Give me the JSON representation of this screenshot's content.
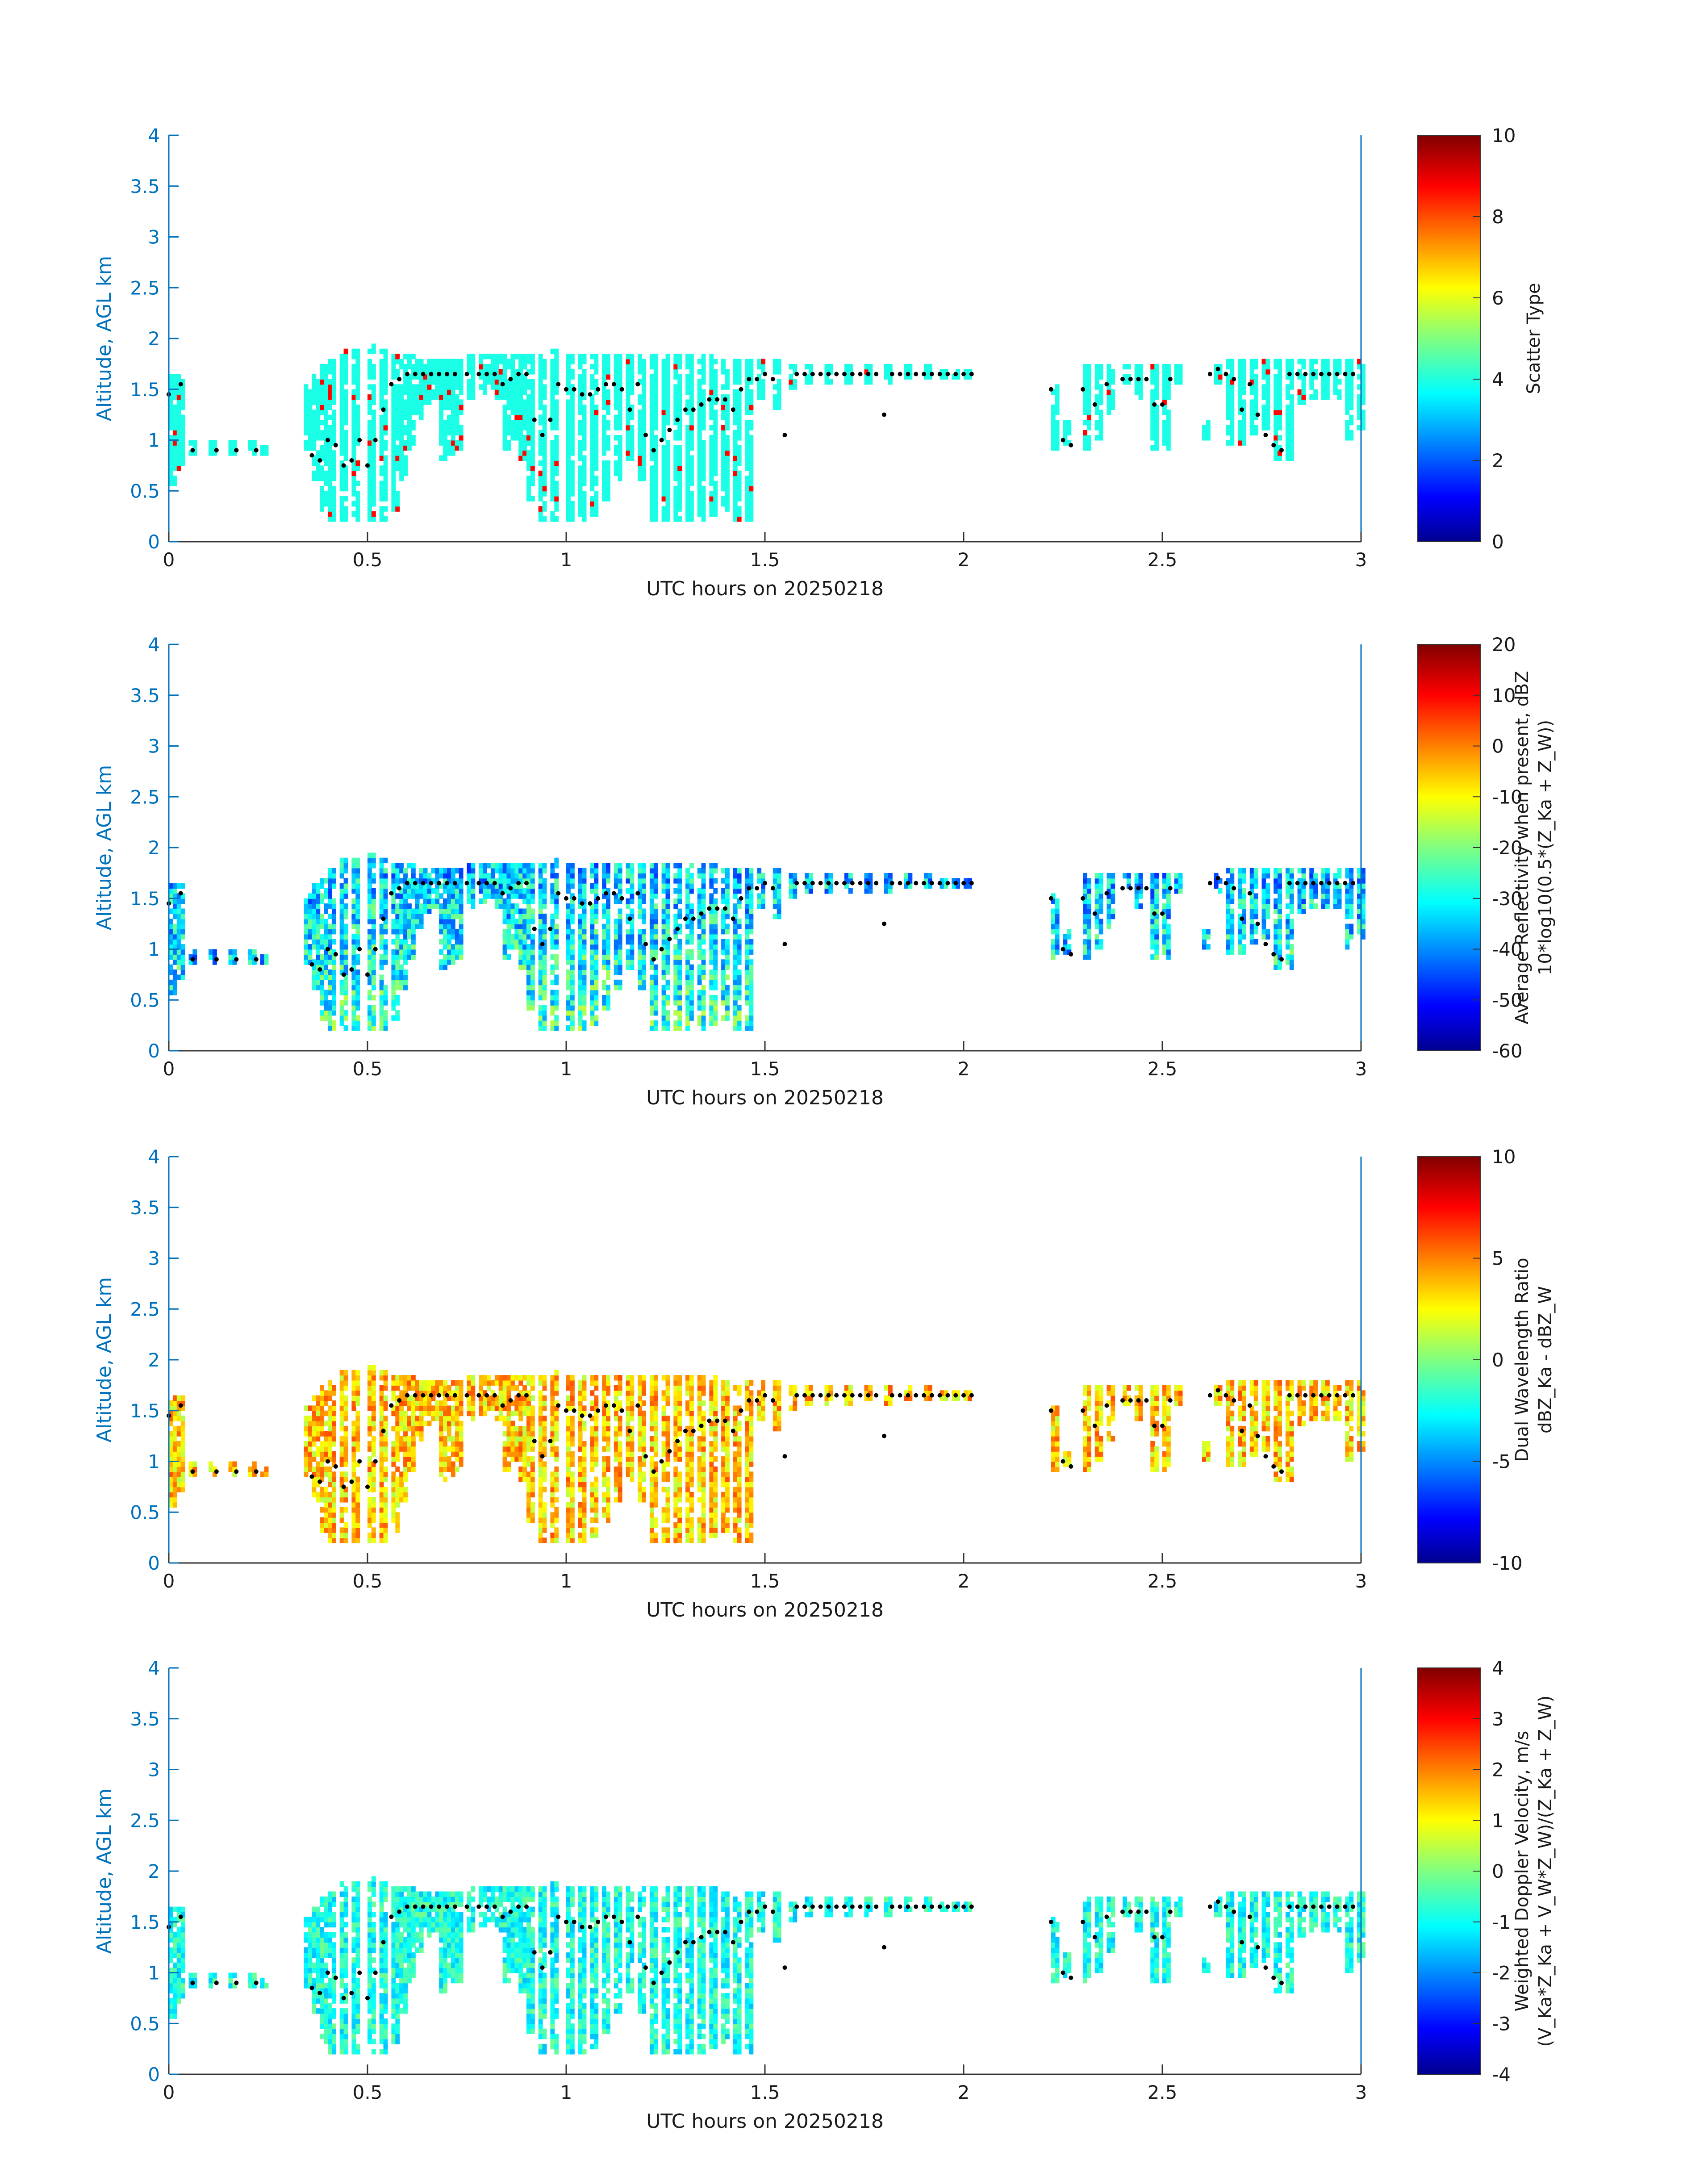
{
  "xlabel": "UTC hours on 20250218",
  "ylabel": "Altitude, AGL km",
  "colormap": "jet",
  "chart_data": [
    {
      "type": "heatmap",
      "xlim": [
        0,
        3
      ],
      "ylim": [
        0,
        4
      ],
      "xticks": [
        "0",
        "0.5",
        "1",
        "1.5",
        "2",
        "2.5",
        "3"
      ],
      "yticks": [
        "0",
        "0.5",
        "1",
        "1.5",
        "2",
        "2.5",
        "3",
        "3.5",
        "4"
      ],
      "colorbar": {
        "min": 0,
        "max": 10,
        "ticks": [
          "0",
          "2",
          "4",
          "6",
          "8",
          "10"
        ],
        "label": [
          "Scatter Type"
        ]
      },
      "typical_value": 4,
      "variability": 0.0,
      "outlier_value": 8.7,
      "outlier_rate": 0.03
    },
    {
      "type": "heatmap",
      "xlim": [
        0,
        3
      ],
      "ylim": [
        0,
        4
      ],
      "xticks": [
        "0",
        "0.5",
        "1",
        "1.5",
        "2",
        "2.5",
        "3"
      ],
      "yticks": [
        "0",
        "0.5",
        "1",
        "1.5",
        "2",
        "2.5",
        "3",
        "3.5",
        "4"
      ],
      "colorbar": {
        "min": -60,
        "max": 20,
        "ticks": [
          "-60",
          "-50",
          "-40",
          "-30",
          "-20",
          "-10",
          "0",
          "10",
          "20"
        ],
        "label": [
          "Average Reflectivity when present, dBZ",
          "10*log10(0.5*(Z_Ka + Z_W))"
        ]
      },
      "typical_value": -35,
      "variability": 12
    },
    {
      "type": "heatmap",
      "xlim": [
        0,
        3
      ],
      "ylim": [
        0,
        4
      ],
      "xticks": [
        "0",
        "0.5",
        "1",
        "1.5",
        "2",
        "2.5",
        "3"
      ],
      "yticks": [
        "0",
        "0.5",
        "1",
        "1.5",
        "2",
        "2.5",
        "3",
        "3.5",
        "4"
      ],
      "colorbar": {
        "min": -10,
        "max": 10,
        "ticks": [
          "-10",
          "-5",
          "0",
          "5",
          "10"
        ],
        "label": [
          "Dual Wavelength Ratio",
          "dBZ_Ka - dBZ_W"
        ]
      },
      "typical_value": 3.5,
      "variability": 2.5
    },
    {
      "type": "heatmap",
      "xlim": [
        0,
        3
      ],
      "ylim": [
        0,
        4
      ],
      "xticks": [
        "0",
        "0.5",
        "1",
        "1.5",
        "2",
        "2.5",
        "3"
      ],
      "yticks": [
        "0",
        "0.5",
        "1",
        "1.5",
        "2",
        "2.5",
        "3",
        "3.5",
        "4"
      ],
      "colorbar": {
        "min": -4,
        "max": 4,
        "ticks": [
          "-4",
          "-3",
          "-2",
          "-1",
          "0",
          "1",
          "2",
          "3",
          "4"
        ],
        "label": [
          "Weighted Doppler Velocity, m/s",
          "(V_Ka*Z_Ka + V_W*Z_W)/(Z_Ka + Z_W)"
        ]
      },
      "typical_value": -0.8,
      "variability": 0.7
    }
  ],
  "cloud_mask": {
    "dx": 0.01,
    "dz": 0.05,
    "columns": [
      [
        0.0,
        0.55,
        1.65
      ],
      [
        0.02,
        0.7,
        1.65
      ],
      [
        0.05,
        0.85,
        1.0
      ],
      [
        0.1,
        0.85,
        1.0
      ],
      [
        0.15,
        0.85,
        1.0
      ],
      [
        0.2,
        0.85,
        1.0
      ],
      [
        0.23,
        0.85,
        0.95
      ],
      [
        0.34,
        0.85,
        1.55
      ],
      [
        0.36,
        0.6,
        1.65
      ],
      [
        0.38,
        0.3,
        1.75
      ],
      [
        0.4,
        0.2,
        1.8
      ],
      [
        0.43,
        0.2,
        1.9
      ],
      [
        0.46,
        0.2,
        1.9
      ],
      [
        0.5,
        0.2,
        1.95
      ],
      [
        0.53,
        0.2,
        1.9
      ],
      [
        0.56,
        0.3,
        1.85
      ],
      [
        0.58,
        0.6,
        1.85
      ],
      [
        0.6,
        0.9,
        1.85
      ],
      [
        0.62,
        1.2,
        1.8
      ],
      [
        0.64,
        1.35,
        1.8
      ],
      [
        0.66,
        1.4,
        1.8
      ],
      [
        0.68,
        0.8,
        1.8
      ],
      [
        0.7,
        0.85,
        1.8
      ],
      [
        0.72,
        0.9,
        1.8
      ],
      [
        0.75,
        1.4,
        1.85
      ],
      [
        0.78,
        1.45,
        1.85
      ],
      [
        0.8,
        1.5,
        1.85
      ],
      [
        0.82,
        1.4,
        1.85
      ],
      [
        0.84,
        0.9,
        1.85
      ],
      [
        0.86,
        1.0,
        1.85
      ],
      [
        0.88,
        0.8,
        1.85
      ],
      [
        0.9,
        0.4,
        1.85
      ],
      [
        0.93,
        0.2,
        1.85
      ],
      [
        0.96,
        0.2,
        1.9
      ],
      [
        1.0,
        0.2,
        1.85
      ],
      [
        1.03,
        0.2,
        1.85
      ],
      [
        1.06,
        0.25,
        1.85
      ],
      [
        1.09,
        0.4,
        1.85
      ],
      [
        1.12,
        0.6,
        1.85
      ],
      [
        1.15,
        0.8,
        1.85
      ],
      [
        1.18,
        0.6,
        1.85
      ],
      [
        1.21,
        0.2,
        1.85
      ],
      [
        1.24,
        0.2,
        1.85
      ],
      [
        1.27,
        0.2,
        1.85
      ],
      [
        1.3,
        0.2,
        1.85
      ],
      [
        1.33,
        0.2,
        1.85
      ],
      [
        1.36,
        0.25,
        1.85
      ],
      [
        1.39,
        0.3,
        1.8
      ],
      [
        1.42,
        0.2,
        1.8
      ],
      [
        1.45,
        0.2,
        1.8
      ],
      [
        1.48,
        1.4,
        1.8
      ],
      [
        1.52,
        1.3,
        1.8
      ],
      [
        1.56,
        1.5,
        1.75
      ],
      [
        1.6,
        1.55,
        1.75
      ],
      [
        1.65,
        1.55,
        1.75
      ],
      [
        1.7,
        1.55,
        1.75
      ],
      [
        1.75,
        1.55,
        1.75
      ],
      [
        1.8,
        1.55,
        1.75
      ],
      [
        1.85,
        1.6,
        1.75
      ],
      [
        1.9,
        1.6,
        1.75
      ],
      [
        1.94,
        1.6,
        1.7
      ],
      [
        1.97,
        1.6,
        1.7
      ],
      [
        2.0,
        1.6,
        1.7
      ],
      [
        2.22,
        0.9,
        1.55
      ],
      [
        2.25,
        0.95,
        1.2
      ],
      [
        2.3,
        0.9,
        1.75
      ],
      [
        2.33,
        1.0,
        1.75
      ],
      [
        2.36,
        1.2,
        1.75
      ],
      [
        2.4,
        1.55,
        1.75
      ],
      [
        2.43,
        1.4,
        1.75
      ],
      [
        2.47,
        0.9,
        1.75
      ],
      [
        2.5,
        0.9,
        1.75
      ],
      [
        2.53,
        1.55,
        1.75
      ],
      [
        2.6,
        1.0,
        1.2
      ],
      [
        2.63,
        1.55,
        1.75
      ],
      [
        2.66,
        0.95,
        1.8
      ],
      [
        2.69,
        0.95,
        1.8
      ],
      [
        2.72,
        1.05,
        1.8
      ],
      [
        2.75,
        1.1,
        1.8
      ],
      [
        2.78,
        0.8,
        1.8
      ],
      [
        2.81,
        0.8,
        1.8
      ],
      [
        2.84,
        1.35,
        1.8
      ],
      [
        2.87,
        1.4,
        1.8
      ],
      [
        2.9,
        1.4,
        1.8
      ],
      [
        2.93,
        1.4,
        1.8
      ],
      [
        2.96,
        1.0,
        1.8
      ],
      [
        2.99,
        1.1,
        1.8
      ]
    ]
  },
  "dotted_track": [
    [
      0.0,
      1.45
    ],
    [
      0.03,
      1.55
    ],
    [
      0.06,
      0.9
    ],
    [
      0.12,
      0.9
    ],
    [
      0.17,
      0.9
    ],
    [
      0.22,
      0.9
    ],
    [
      0.36,
      0.85
    ],
    [
      0.38,
      0.8
    ],
    [
      0.4,
      1.0
    ],
    [
      0.42,
      0.95
    ],
    [
      0.44,
      0.75
    ],
    [
      0.46,
      0.8
    ],
    [
      0.48,
      1.0
    ],
    [
      0.5,
      0.75
    ],
    [
      0.52,
      1.0
    ],
    [
      0.54,
      1.3
    ],
    [
      0.56,
      1.55
    ],
    [
      0.58,
      1.6
    ],
    [
      0.6,
      1.65
    ],
    [
      0.62,
      1.65
    ],
    [
      0.64,
      1.65
    ],
    [
      0.66,
      1.65
    ],
    [
      0.68,
      1.65
    ],
    [
      0.7,
      1.65
    ],
    [
      0.72,
      1.65
    ],
    [
      0.75,
      1.65
    ],
    [
      0.78,
      1.65
    ],
    [
      0.8,
      1.65
    ],
    [
      0.82,
      1.65
    ],
    [
      0.84,
      1.55
    ],
    [
      0.86,
      1.6
    ],
    [
      0.88,
      1.65
    ],
    [
      0.9,
      1.65
    ],
    [
      0.92,
      1.2
    ],
    [
      0.94,
      1.05
    ],
    [
      0.96,
      1.2
    ],
    [
      0.98,
      1.55
    ],
    [
      1.0,
      1.5
    ],
    [
      1.02,
      1.5
    ],
    [
      1.04,
      1.45
    ],
    [
      1.06,
      1.45
    ],
    [
      1.08,
      1.5
    ],
    [
      1.1,
      1.55
    ],
    [
      1.12,
      1.55
    ],
    [
      1.14,
      1.5
    ],
    [
      1.16,
      1.3
    ],
    [
      1.18,
      1.55
    ],
    [
      1.2,
      1.05
    ],
    [
      1.22,
      0.9
    ],
    [
      1.24,
      1.0
    ],
    [
      1.26,
      1.1
    ],
    [
      1.28,
      1.2
    ],
    [
      1.3,
      1.3
    ],
    [
      1.32,
      1.3
    ],
    [
      1.34,
      1.35
    ],
    [
      1.36,
      1.4
    ],
    [
      1.38,
      1.4
    ],
    [
      1.4,
      1.4
    ],
    [
      1.42,
      1.3
    ],
    [
      1.44,
      1.5
    ],
    [
      1.46,
      1.6
    ],
    [
      1.48,
      1.6
    ],
    [
      1.5,
      1.65
    ],
    [
      1.52,
      1.6
    ],
    [
      1.55,
      1.05
    ],
    [
      1.58,
      1.65
    ],
    [
      1.6,
      1.65
    ],
    [
      1.62,
      1.65
    ],
    [
      1.64,
      1.65
    ],
    [
      1.66,
      1.65
    ],
    [
      1.68,
      1.65
    ],
    [
      1.7,
      1.65
    ],
    [
      1.72,
      1.65
    ],
    [
      1.74,
      1.65
    ],
    [
      1.76,
      1.65
    ],
    [
      1.78,
      1.65
    ],
    [
      1.8,
      1.25
    ],
    [
      1.82,
      1.65
    ],
    [
      1.84,
      1.65
    ],
    [
      1.86,
      1.65
    ],
    [
      1.88,
      1.65
    ],
    [
      1.9,
      1.65
    ],
    [
      1.92,
      1.65
    ],
    [
      1.94,
      1.65
    ],
    [
      1.96,
      1.65
    ],
    [
      1.98,
      1.65
    ],
    [
      2.0,
      1.65
    ],
    [
      2.02,
      1.65
    ],
    [
      2.22,
      1.5
    ],
    [
      2.25,
      1.0
    ],
    [
      2.27,
      0.95
    ],
    [
      2.3,
      1.5
    ],
    [
      2.33,
      1.35
    ],
    [
      2.36,
      1.55
    ],
    [
      2.4,
      1.6
    ],
    [
      2.42,
      1.6
    ],
    [
      2.44,
      1.6
    ],
    [
      2.46,
      1.6
    ],
    [
      2.48,
      1.35
    ],
    [
      2.5,
      1.35
    ],
    [
      2.52,
      1.6
    ],
    [
      2.62,
      1.65
    ],
    [
      2.64,
      1.7
    ],
    [
      2.66,
      1.65
    ],
    [
      2.68,
      1.6
    ],
    [
      2.7,
      1.3
    ],
    [
      2.72,
      1.55
    ],
    [
      2.74,
      1.25
    ],
    [
      2.76,
      1.05
    ],
    [
      2.78,
      0.95
    ],
    [
      2.8,
      0.9
    ],
    [
      2.82,
      1.65
    ],
    [
      2.84,
      1.65
    ],
    [
      2.86,
      1.65
    ],
    [
      2.88,
      1.65
    ],
    [
      2.9,
      1.65
    ],
    [
      2.92,
      1.65
    ],
    [
      2.94,
      1.65
    ],
    [
      2.96,
      1.65
    ],
    [
      2.98,
      1.65
    ]
  ]
}
